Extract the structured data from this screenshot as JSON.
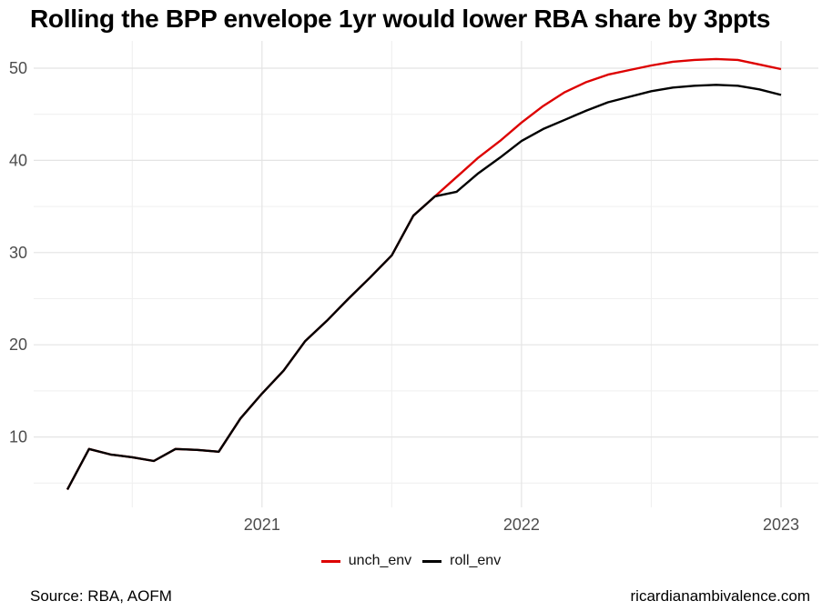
{
  "title": "Rolling the BPP envelope 1yr would lower RBA share by 3ppts",
  "source_note": "Source: RBA, AOFM",
  "site_credit": "ricardianambivalence.com",
  "legend": [
    {
      "label": "unch_env",
      "color": "#dd0000"
    },
    {
      "label": "roll_env",
      "color": "#000000"
    }
  ],
  "colors": {
    "axis_label": "#4d4d4d",
    "grid_major": "#e4e4e4",
    "grid_minor": "#f0f0f0",
    "title": "#000000"
  },
  "chart_data": {
    "type": "line",
    "title": "Rolling the BPP envelope 1yr would lower RBA share by 3ppts",
    "xlabel": "",
    "ylabel": "",
    "x": [
      "2020-03",
      "2020-04",
      "2020-05",
      "2020-06",
      "2020-07",
      "2020-08",
      "2020-09",
      "2020-10",
      "2020-11",
      "2020-12",
      "2021-01",
      "2021-02",
      "2021-03",
      "2021-04",
      "2021-05",
      "2021-06",
      "2021-07",
      "2021-08",
      "2021-09",
      "2021-10",
      "2021-11",
      "2021-12",
      "2022-01",
      "2022-02",
      "2022-03",
      "2022-04",
      "2022-05",
      "2022-06",
      "2022-07",
      "2022-08",
      "2022-09",
      "2022-10",
      "2022-11",
      "2022-12"
    ],
    "series": [
      {
        "name": "unch_env",
        "color": "#dd0000",
        "values": [
          4.3,
          8.7,
          8.1,
          7.8,
          7.4,
          8.7,
          8.6,
          8.4,
          12.0,
          14.7,
          17.2,
          20.4,
          22.6,
          25.0,
          27.3,
          29.7,
          34.0,
          36.1,
          38.2,
          40.3,
          42.1,
          44.1,
          45.9,
          47.4,
          48.5,
          49.3,
          49.8,
          50.3,
          50.7,
          50.9,
          51.0,
          50.9,
          50.4,
          49.9
        ]
      },
      {
        "name": "roll_env",
        "color": "#000000",
        "values": [
          4.3,
          8.7,
          8.1,
          7.8,
          7.4,
          8.7,
          8.6,
          8.4,
          12.0,
          14.7,
          17.2,
          20.4,
          22.6,
          25.0,
          27.3,
          29.7,
          34.0,
          36.1,
          36.6,
          38.6,
          40.3,
          42.1,
          43.4,
          44.4,
          45.4,
          46.3,
          46.9,
          47.5,
          47.9,
          48.1,
          48.2,
          48.1,
          47.7,
          47.1
        ]
      }
    ],
    "xticks": [
      "2021",
      "2022",
      "2023"
    ],
    "xtick_indices": [
      9,
      21,
      33
    ],
    "xminor_indices": [
      3,
      15,
      27
    ],
    "yticks": [
      10,
      20,
      30,
      40,
      50
    ],
    "yticks_minor": [
      5,
      15,
      25,
      35,
      45
    ],
    "ylim": [
      3,
      52
    ],
    "grid": true,
    "legend_position": "bottom"
  }
}
